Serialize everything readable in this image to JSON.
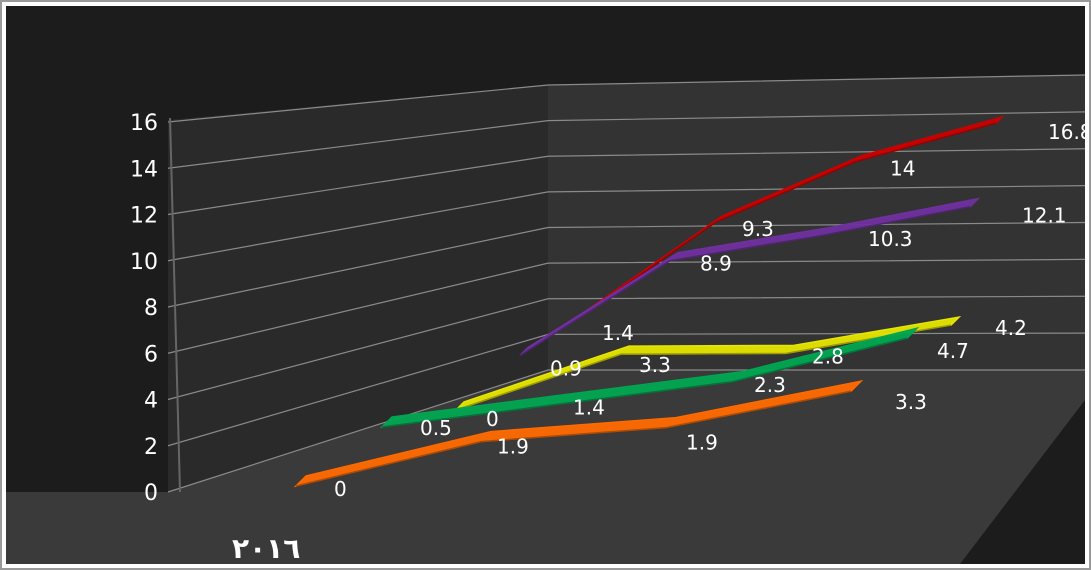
{
  "chart_data": {
    "type": "line",
    "style": "3d-ribbon",
    "background": "#000000",
    "ylim": [
      0,
      16
    ],
    "y_ticks": [
      0,
      2,
      4,
      6,
      8,
      10,
      12,
      14,
      16
    ],
    "grid": true,
    "category_label": "٢٠١٦",
    "x": [
      1,
      2,
      3,
      4
    ],
    "series": [
      {
        "color": "#ff6a00",
        "values": [
          0,
          1.9,
          1.9,
          3.3
        ]
      },
      {
        "color": "#00a651",
        "values": [
          0.5,
          1.4,
          2.3,
          4.7
        ]
      },
      {
        "color": "#e6e600",
        "values": [
          0,
          3.3,
          2.8,
          4.2
        ]
      },
      {
        "color": "#7030a0",
        "values": [
          0.9,
          8.9,
          10.3,
          12.1
        ]
      },
      {
        "color": "#cc0000",
        "values": [
          1.4,
          9.3,
          14,
          16.8
        ]
      }
    ]
  }
}
